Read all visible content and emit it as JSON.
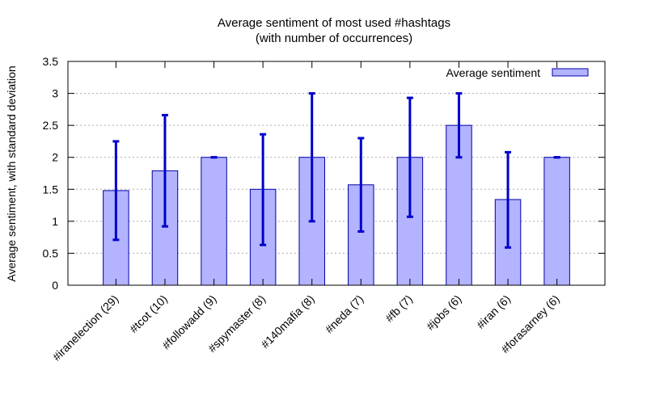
{
  "chart_data": {
    "type": "bar",
    "title": "Average sentiment of most used #hashtags",
    "subtitle": "(with number of occurrences)",
    "xlabel": "",
    "ylabel": "Average sentiment, with standard deviation",
    "ylim": [
      0,
      3.5
    ],
    "yticks": [
      "0",
      "0.5",
      "1",
      "1.5",
      "2",
      "2.5",
      "3",
      "3.5"
    ],
    "grid": true,
    "legend_position": "top-right",
    "categories": [
      "#iranelection (29)",
      "#tcot (10)",
      "#followadd (9)",
      "#spymaster (8)",
      "#140mafia (8)",
      "#neda (7)",
      "#fb (7)",
      "#jobs (6)",
      "#iran (6)",
      "#forasarney (6)"
    ],
    "series": [
      {
        "name": "Average sentiment",
        "values": [
          1.48,
          1.79,
          2.0,
          1.5,
          2.0,
          1.57,
          2.0,
          2.5,
          1.34,
          2.0
        ],
        "error_low": [
          0.71,
          0.92,
          2.0,
          0.63,
          1.0,
          0.84,
          1.07,
          2.0,
          0.59,
          2.0
        ],
        "error_high": [
          2.25,
          2.66,
          2.0,
          2.36,
          3.0,
          2.3,
          2.93,
          3.0,
          2.08,
          2.0
        ]
      }
    ],
    "colors": {
      "bar_fill": "#b3b3ff",
      "bar_stroke": "#0000aa",
      "error_bar": "#0000cc",
      "grid": "#aaaaaa",
      "axis": "#000000"
    }
  }
}
